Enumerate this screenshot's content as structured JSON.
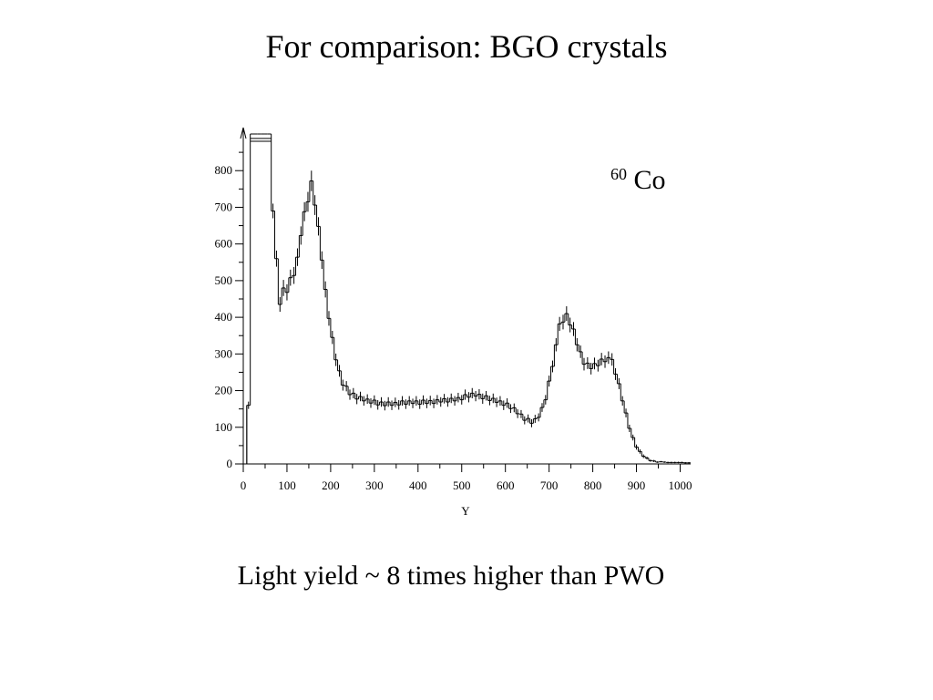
{
  "slide": {
    "title": "For comparison: BGO crystals",
    "caption": "Light yield ~ 8 times higher than PWO"
  },
  "chart_data": {
    "type": "histogram",
    "title": "",
    "annotation": {
      "superscript": "60",
      "text": "Co"
    },
    "xlabel": "Y",
    "ylabel": "",
    "xlim": [
      0,
      1024
    ],
    "ylim": [
      0,
      900
    ],
    "xticks": [
      0,
      100,
      200,
      300,
      400,
      500,
      600,
      700,
      800,
      900,
      1000
    ],
    "yticks": [
      0,
      100,
      200,
      300,
      400,
      500,
      600,
      700,
      800
    ],
    "grid": false,
    "legend": "none",
    "bin_width": 8,
    "x": [
      0,
      8,
      16,
      24,
      32,
      40,
      48,
      56,
      64,
      72,
      80,
      88,
      96,
      104,
      112,
      120,
      128,
      136,
      144,
      152,
      160,
      168,
      176,
      184,
      192,
      200,
      208,
      216,
      224,
      232,
      240,
      248,
      256,
      264,
      272,
      280,
      288,
      296,
      304,
      312,
      320,
      328,
      336,
      344,
      352,
      360,
      368,
      376,
      384,
      392,
      400,
      408,
      416,
      424,
      432,
      440,
      448,
      456,
      464,
      472,
      480,
      488,
      496,
      504,
      512,
      520,
      528,
      536,
      544,
      552,
      560,
      568,
      576,
      584,
      592,
      600,
      608,
      616,
      624,
      632,
      640,
      648,
      656,
      664,
      672,
      680,
      688,
      696,
      704,
      712,
      720,
      728,
      736,
      744,
      752,
      760,
      768,
      776,
      784,
      792,
      800,
      808,
      816,
      824,
      832,
      840,
      848,
      856,
      864,
      872,
      880,
      888,
      896,
      904,
      912,
      920,
      928,
      936,
      944,
      952,
      960,
      968,
      976,
      984,
      992,
      1000,
      1008,
      1016
    ],
    "values": [
      0,
      160,
      900,
      900,
      900,
      900,
      900,
      900,
      690,
      560,
      450,
      470,
      480,
      500,
      520,
      560,
      620,
      680,
      720,
      760,
      720,
      640,
      560,
      470,
      400,
      340,
      290,
      250,
      220,
      205,
      195,
      190,
      182,
      178,
      175,
      172,
      170,
      168,
      166,
      165,
      165,
      164,
      164,
      165,
      166,
      166,
      167,
      167,
      168,
      168,
      168,
      168,
      169,
      170,
      170,
      171,
      172,
      172,
      173,
      174,
      175,
      177,
      180,
      183,
      186,
      188,
      188,
      186,
      183,
      180,
      177,
      174,
      171,
      168,
      165,
      160,
      155,
      148,
      140,
      132,
      124,
      118,
      115,
      118,
      130,
      150,
      180,
      220,
      270,
      320,
      370,
      395,
      400,
      385,
      360,
      330,
      300,
      280,
      268,
      265,
      268,
      272,
      278,
      285,
      285,
      275,
      250,
      215,
      175,
      135,
      100,
      70,
      48,
      32,
      22,
      15,
      10,
      7,
      6,
      5,
      5,
      4,
      4,
      4,
      4,
      4,
      3,
      3
    ],
    "errors": [
      0,
      10,
      0,
      0,
      0,
      0,
      0,
      0,
      20,
      22,
      20,
      22,
      22,
      22,
      23,
      24,
      25,
      26,
      27,
      28,
      27,
      25,
      24,
      22,
      20,
      18,
      17,
      16,
      15,
      14,
      14,
      14,
      14,
      13,
      13,
      13,
      13,
      13,
      13,
      13,
      13,
      13,
      13,
      13,
      13,
      13,
      13,
      13,
      13,
      13,
      13,
      13,
      13,
      13,
      13,
      13,
      13,
      13,
      13,
      13,
      13,
      13,
      13,
      14,
      14,
      14,
      14,
      14,
      14,
      13,
      13,
      13,
      13,
      13,
      13,
      13,
      12,
      12,
      12,
      11,
      11,
      11,
      11,
      11,
      11,
      12,
      13,
      15,
      16,
      18,
      19,
      20,
      20,
      20,
      19,
      18,
      17,
      17,
      16,
      16,
      16,
      16,
      17,
      17,
      17,
      17,
      16,
      15,
      13,
      12,
      10,
      8,
      7,
      6,
      5,
      4,
      3,
      3,
      2,
      2,
      2,
      2,
      2,
      2,
      2,
      2,
      2,
      2
    ],
    "jitter": [
      0,
      0,
      0,
      0,
      0,
      0,
      0,
      0,
      0,
      0,
      -15,
      10,
      -12,
      8,
      -6,
      4,
      3,
      8,
      -5,
      12,
      -14,
      8,
      -4,
      6,
      -3,
      5,
      -6,
      4,
      -5,
      7,
      -6,
      3,
      -5,
      6,
      -3,
      5,
      -4,
      6,
      -5,
      4,
      -6,
      5,
      -4,
      3,
      -5,
      6,
      -4,
      5,
      -3,
      4,
      -5,
      6,
      -4,
      3,
      -5,
      4,
      -3,
      6,
      -4,
      5,
      -3,
      4,
      -5,
      6,
      -4,
      5,
      -3,
      4,
      -5,
      6,
      -4,
      5,
      -3,
      4,
      -5,
      6,
      -4,
      5,
      -3,
      4,
      -5,
      6,
      -4,
      5,
      -3,
      4,
      -5,
      6,
      -4,
      5,
      12,
      -8,
      10,
      -6,
      8,
      -5,
      6,
      -8,
      7,
      -5,
      6,
      -4,
      8,
      -6,
      5,
      10,
      -5,
      4,
      -3,
      4,
      -3,
      2,
      -2,
      2,
      -1,
      1,
      -1,
      1,
      -1,
      1,
      0,
      0,
      0,
      0,
      0,
      0,
      0,
      0
    ]
  }
}
